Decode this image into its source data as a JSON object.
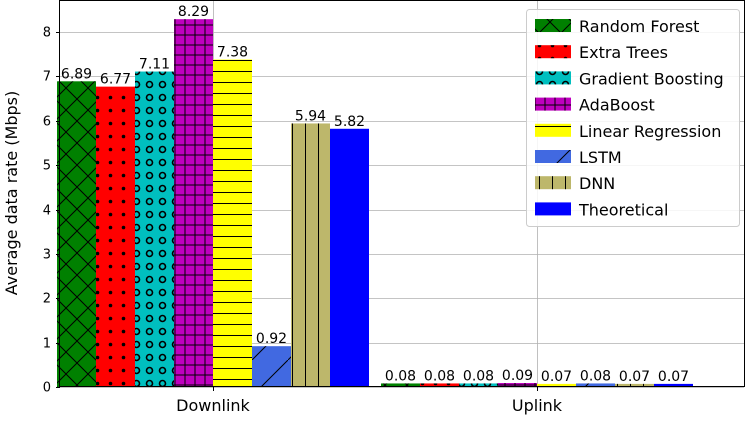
{
  "chart_data": {
    "type": "bar",
    "title": "",
    "xlabel": "",
    "ylabel": "Average data rate (Mbps)",
    "categories": [
      "Downlink",
      "Uplink"
    ],
    "ylim": [
      0,
      8.7
    ],
    "yticks": [
      0,
      1,
      2,
      3,
      4,
      5,
      6,
      7,
      8
    ],
    "grid": true,
    "legend_position": "top-right",
    "series": [
      {
        "name": "Random Forest",
        "values": [
          6.89,
          0.08
        ],
        "labels": [
          "6.89",
          "0.08"
        ],
        "color": "#008000",
        "hatch": "x"
      },
      {
        "name": "Extra Trees",
        "values": [
          6.77,
          0.08
        ],
        "labels": [
          "6.77",
          "0.08"
        ],
        "color": "#ff0000",
        "hatch": "dots"
      },
      {
        "name": "Gradient Boosting",
        "values": [
          7.11,
          0.08
        ],
        "labels": [
          "7.11",
          "0.08"
        ],
        "color": "#00bfbf",
        "hatch": "circles"
      },
      {
        "name": "AdaBoost",
        "values": [
          8.29,
          0.09
        ],
        "labels": [
          "8.29",
          "0.09"
        ],
        "color": "#bf00bf",
        "hatch": "plus"
      },
      {
        "name": "Linear Regression",
        "values": [
          7.38,
          0.07
        ],
        "labels": [
          "7.38",
          "0.07"
        ],
        "color": "#ffff00",
        "hatch": "horizontal"
      },
      {
        "name": "LSTM",
        "values": [
          0.92,
          0.08
        ],
        "labels": [
          "0.92",
          "0.08"
        ],
        "color": "#4169e1",
        "hatch": "diagonal"
      },
      {
        "name": "DNN",
        "values": [
          5.94,
          0.07
        ],
        "labels": [
          "5.94",
          "0.07"
        ],
        "color": "#bdb76b",
        "hatch": "vertical"
      },
      {
        "name": "Theoretical",
        "values": [
          5.82,
          0.07
        ],
        "labels": [
          "5.82",
          "0.07"
        ],
        "color": "#0000ff",
        "hatch": "none"
      }
    ]
  }
}
